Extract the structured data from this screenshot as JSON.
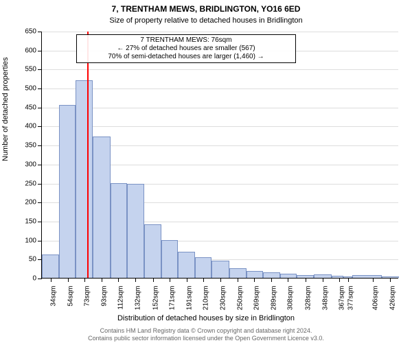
{
  "title_line1": "7, TRENTHAM MEWS, BRIDLINGTON, YO16 6ED",
  "title_line2": "Size of property relative to detached houses in Bridlington",
  "title_fontsize": 12,
  "subtitle_fontsize": 11,
  "ylabel": "Number of detached properties",
  "xlabel": "Distribution of detached houses by size in Bridlington",
  "axis_label_fontsize": 11,
  "tick_fontsize": 10,
  "footer_line1": "Contains HM Land Registry data © Crown copyright and database right 2024.",
  "footer_line2": "Contains public sector information licensed under the Open Government Licence v3.0.",
  "footer_fontsize": 9,
  "footer_color": "#666666",
  "chart": {
    "type": "histogram",
    "background_color": "#ffffff",
    "grid_color": "#dddddd",
    "bar_fill": "#c5d3ee",
    "bar_border": "#7a92c4",
    "bar_border_width": 1,
    "marker_color": "#ff0000",
    "marker_width": 2,
    "marker_x": 76,
    "xlim": [
      24,
      436
    ],
    "ylim": [
      0,
      650
    ],
    "ytick_step": 50,
    "x_categories": [
      "34sqm",
      "54sqm",
      "73sqm",
      "93sqm",
      "112sqm",
      "132sqm",
      "152sqm",
      "171sqm",
      "191sqm",
      "210sqm",
      "230sqm",
      "250sqm",
      "269sqm",
      "289sqm",
      "308sqm",
      "328sqm",
      "348sqm",
      "367sqm",
      "377sqm",
      "406sqm",
      "426sqm"
    ],
    "x_tick_values": [
      34,
      54,
      73,
      93,
      112,
      132,
      152,
      171,
      191,
      210,
      230,
      250,
      269,
      289,
      308,
      328,
      348,
      367,
      377,
      406,
      426
    ],
    "bars": [
      {
        "x0": 24,
        "x1": 44,
        "y": 62
      },
      {
        "x0": 44,
        "x1": 63,
        "y": 455
      },
      {
        "x0": 63,
        "x1": 83,
        "y": 520
      },
      {
        "x0": 83,
        "x1": 103,
        "y": 372
      },
      {
        "x0": 103,
        "x1": 122,
        "y": 250
      },
      {
        "x0": 122,
        "x1": 142,
        "y": 248
      },
      {
        "x0": 142,
        "x1": 162,
        "y": 140
      },
      {
        "x0": 162,
        "x1": 181,
        "y": 100
      },
      {
        "x0": 181,
        "x1": 201,
        "y": 68
      },
      {
        "x0": 201,
        "x1": 220,
        "y": 55
      },
      {
        "x0": 220,
        "x1": 240,
        "y": 45
      },
      {
        "x0": 240,
        "x1": 260,
        "y": 25
      },
      {
        "x0": 260,
        "x1": 279,
        "y": 18
      },
      {
        "x0": 279,
        "x1": 299,
        "y": 14
      },
      {
        "x0": 299,
        "x1": 318,
        "y": 10
      },
      {
        "x0": 318,
        "x1": 338,
        "y": 8
      },
      {
        "x0": 338,
        "x1": 358,
        "y": 9
      },
      {
        "x0": 358,
        "x1": 372,
        "y": 6
      },
      {
        "x0": 372,
        "x1": 382,
        "y": 4
      },
      {
        "x0": 382,
        "x1": 416,
        "y": 7
      },
      {
        "x0": 416,
        "x1": 436,
        "y": 3
      }
    ],
    "marker_line2_arrow_left": "←",
    "marker_line3_arrow_right": "→"
  },
  "annotation": {
    "line1": "7 TRENTHAM MEWS: 76sqm",
    "line2": " 27% of detached houses are smaller (567)",
    "line3": "70% of semi-detached houses are larger (1,460) ",
    "fontsize": 10
  }
}
